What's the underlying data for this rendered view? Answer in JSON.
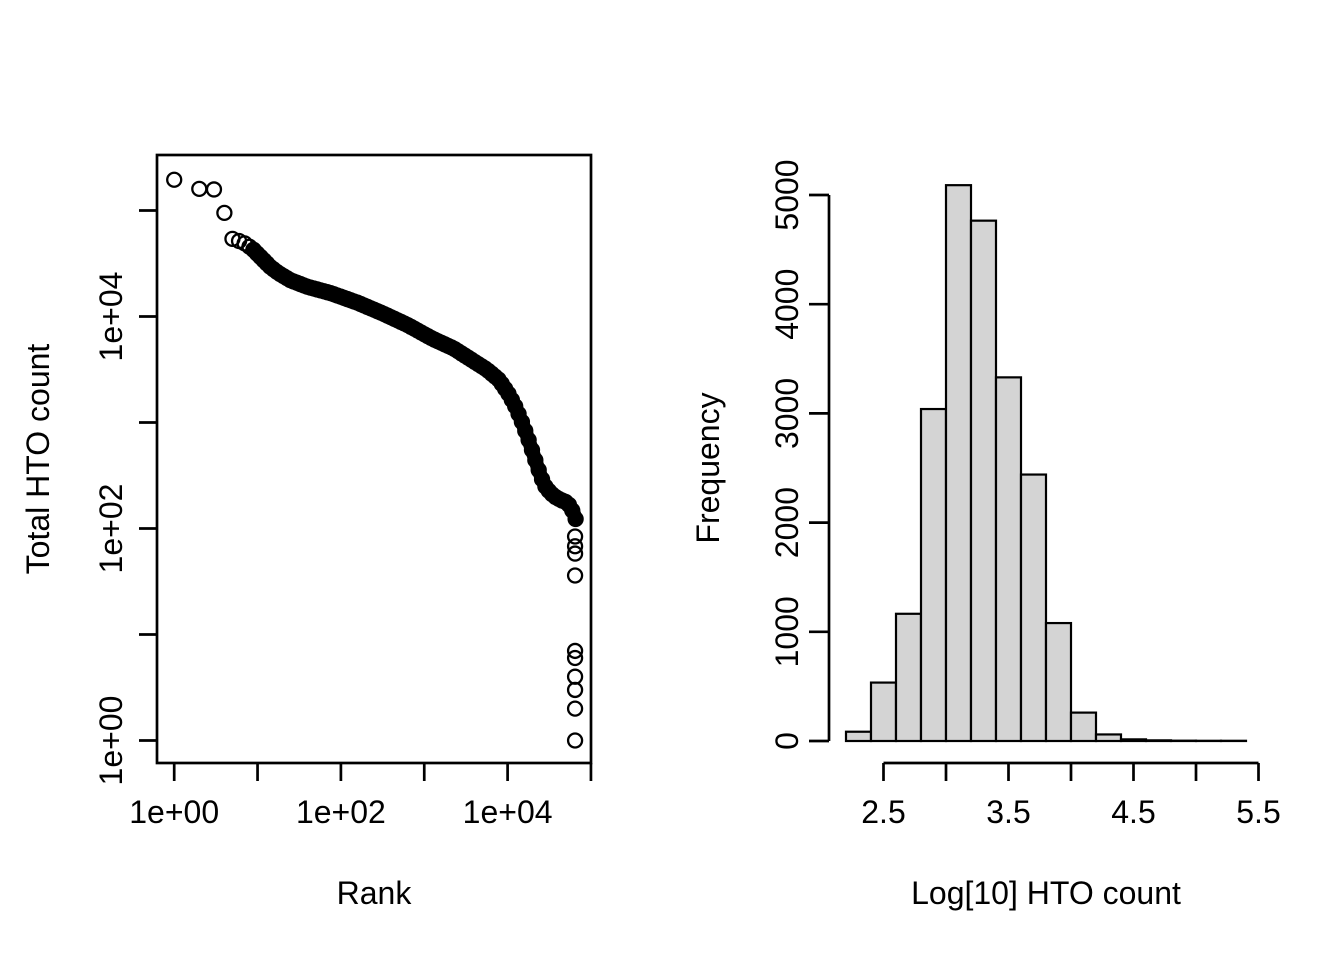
{
  "figure": {
    "background": "#ffffff",
    "foreground": "#000000"
  },
  "chart_data": [
    {
      "type": "scatter",
      "name": "barcode-rank-plot",
      "xlabel": "Rank",
      "ylabel": "Total HTO count",
      "x_scale": "log10",
      "y_scale": "log10",
      "xlim": [
        1,
        100000
      ],
      "ylim": [
        1,
        195000
      ],
      "x_ticks": [
        {
          "value": 1,
          "label": "1e+00"
        },
        {
          "value": 10,
          "label": ""
        },
        {
          "value": 100,
          "label": "1e+02"
        },
        {
          "value": 1000,
          "label": ""
        },
        {
          "value": 10000,
          "label": "1e+04"
        },
        {
          "value": 100000,
          "label": ""
        }
      ],
      "y_ticks": [
        {
          "value": 1,
          "label": "1e+00"
        },
        {
          "value": 10,
          "label": ""
        },
        {
          "value": 100,
          "label": "1e+02"
        },
        {
          "value": 1000,
          "label": ""
        },
        {
          "value": 10000,
          "label": "1e+04"
        },
        {
          "value": 100000,
          "label": ""
        }
      ],
      "marker": {
        "shape": "open-circle",
        "radius_px": 7,
        "stroke_px": 2.3,
        "color": "#000000"
      },
      "head_points": [
        [
          1,
          195000
        ],
        [
          2,
          160000
        ],
        [
          3,
          158000
        ],
        [
          4,
          95000
        ],
        [
          5,
          54000
        ],
        [
          6,
          51500
        ],
        [
          7,
          49000
        ],
        [
          8,
          45500
        ],
        [
          9,
          42400
        ],
        [
          10,
          38900
        ],
        [
          11,
          36100
        ],
        [
          12,
          33700
        ],
        [
          13,
          31600
        ]
      ],
      "band_log10_anchors": [
        [
          0.95,
          4.63
        ],
        [
          1.05,
          4.55
        ],
        [
          1.15,
          4.47
        ],
        [
          1.25,
          4.41
        ],
        [
          1.4,
          4.34
        ],
        [
          1.6,
          4.28
        ],
        [
          1.88,
          4.22
        ],
        [
          2.2,
          4.13
        ],
        [
          2.5,
          4.03
        ],
        [
          2.8,
          3.92
        ],
        [
          3.1,
          3.79
        ],
        [
          3.35,
          3.7
        ],
        [
          3.55,
          3.6
        ],
        [
          3.75,
          3.5
        ],
        [
          3.9,
          3.4
        ],
        [
          4.02,
          3.26
        ],
        [
          4.1,
          3.14
        ],
        [
          4.18,
          2.99
        ],
        [
          4.25,
          2.84
        ],
        [
          4.31,
          2.7
        ],
        [
          4.36,
          2.58
        ],
        [
          4.41,
          2.47
        ],
        [
          4.45,
          2.4
        ],
        [
          4.5,
          2.35
        ],
        [
          4.55,
          2.31
        ],
        [
          4.6,
          2.285
        ],
        [
          4.65,
          2.265
        ],
        [
          4.7,
          2.25
        ],
        [
          4.74,
          2.22
        ],
        [
          4.77,
          2.18
        ],
        [
          4.8,
          2.13
        ],
        [
          4.816,
          2.09
        ]
      ],
      "band_sample_count": 96,
      "tail_rank": 64500,
      "tail_counts": [
        84,
        68,
        58,
        36,
        7,
        6,
        4,
        3,
        2,
        1
      ]
    },
    {
      "type": "histogram",
      "name": "hto-count-histogram",
      "xlabel": "Log[10] HTO count",
      "ylabel": "Frequency",
      "bin_start": 2.2,
      "bin_width": 0.2,
      "counts": [
        85,
        535,
        1165,
        3040,
        5090,
        4765,
        3330,
        2440,
        1080,
        260,
        60,
        15,
        6,
        3,
        2,
        2
      ],
      "bar_fill": "#d4d4d4",
      "bar_stroke": "#000000",
      "x_ticks": [
        {
          "value": 2.5,
          "label": "2.5"
        },
        {
          "value": 3.0,
          "label": ""
        },
        {
          "value": 3.5,
          "label": "3.5"
        },
        {
          "value": 4.0,
          "label": ""
        },
        {
          "value": 4.5,
          "label": "4.5"
        },
        {
          "value": 5.0,
          "label": ""
        },
        {
          "value": 5.5,
          "label": "5.5"
        }
      ],
      "y_ticks": [
        {
          "value": 0,
          "label": "0"
        },
        {
          "value": 1000,
          "label": "1000"
        },
        {
          "value": 2000,
          "label": "2000"
        },
        {
          "value": 3000,
          "label": "3000"
        },
        {
          "value": 4000,
          "label": "4000"
        },
        {
          "value": 5000,
          "label": "5000"
        }
      ]
    }
  ]
}
